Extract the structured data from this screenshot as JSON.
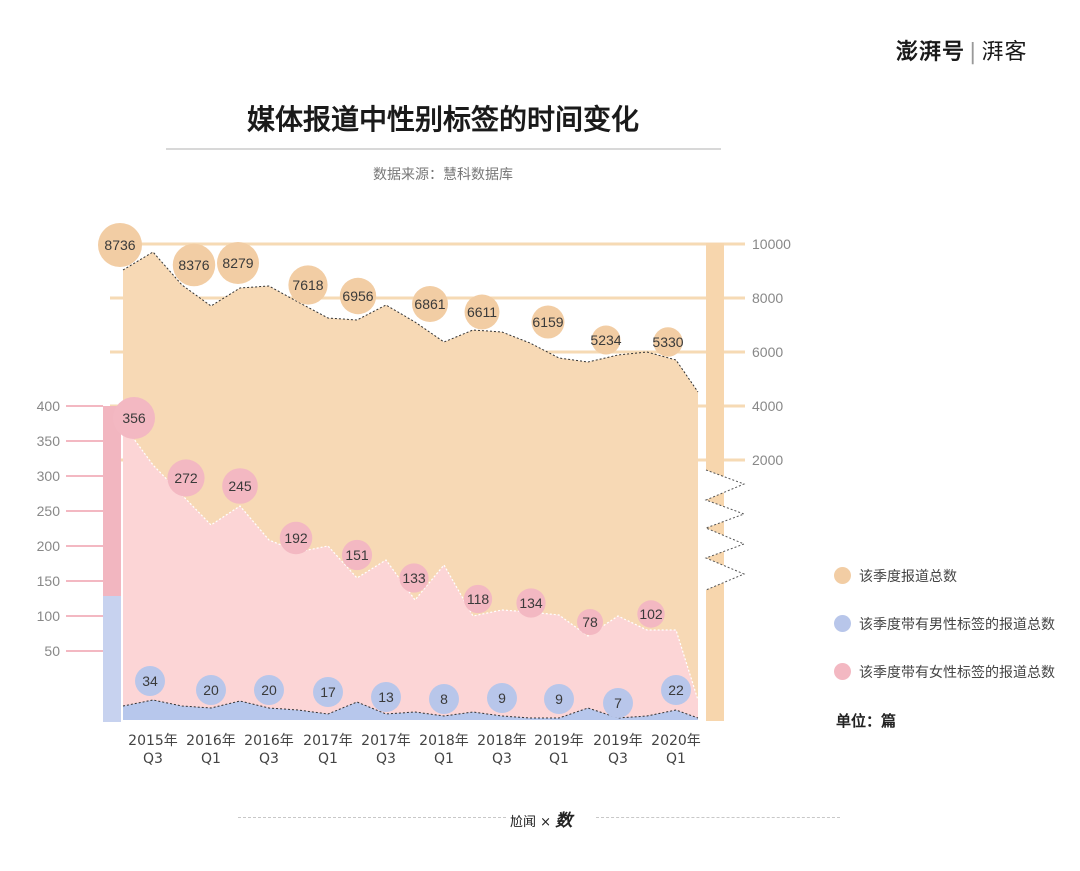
{
  "brand": {
    "main": "澎湃号",
    "sub": "湃客"
  },
  "title": "媒体报道中性别标签的时间变化",
  "source": "数据来源：慧科数据库",
  "legend": [
    {
      "label": "该季度报道总数",
      "color": "#f2cda4"
    },
    {
      "label": "该季度带有男性标签的报道总数",
      "color": "#b8c6ea"
    },
    {
      "label": "该季度带有女性标签的报道总数",
      "color": "#f3b8c2"
    }
  ],
  "unit": "单位：篇",
  "footer": {
    "left": "尬闻",
    "x": "×",
    "right": "数"
  },
  "colors": {
    "total": "#f7d9b5",
    "female": "#fcd5d6",
    "male": "#b7c7ec",
    "total_bubble": "#f2cda4",
    "female_bubble": "#f3b8c2",
    "male_bubble": "#b8c6ea"
  },
  "chart_data": {
    "type": "area",
    "categories": [
      "2015年Q3",
      "2016年Q1",
      "2016年Q3",
      "2017年Q1",
      "2017年Q3",
      "2018年Q1",
      "2018年Q3",
      "2019年Q1",
      "2019年Q3",
      "2020年Q1"
    ],
    "axes": {
      "right": {
        "ticks": [
          10000,
          8000,
          6000,
          4000,
          2000
        ],
        "ylim": [
          0,
          10000
        ]
      },
      "left": {
        "ticks": [
          400,
          350,
          300,
          250,
          200,
          150,
          100,
          50
        ],
        "ylim": [
          0,
          400
        ]
      }
    },
    "series": [
      {
        "name": "该季度报道总数",
        "axis": "right",
        "labels": [
          8736,
          8376,
          8279,
          7618,
          6956,
          6861,
          6611,
          6159,
          5234,
          5330
        ]
      },
      {
        "name": "该季度带有女性标签的报道总数",
        "axis": "left",
        "labels": [
          356,
          272,
          245,
          192,
          151,
          133,
          118,
          134,
          78,
          102
        ]
      },
      {
        "name": "该季度带有男性标签的报道总数",
        "axis": "left",
        "labels": [
          34,
          20,
          20,
          17,
          13,
          8,
          9,
          9,
          7,
          22
        ]
      }
    ]
  }
}
